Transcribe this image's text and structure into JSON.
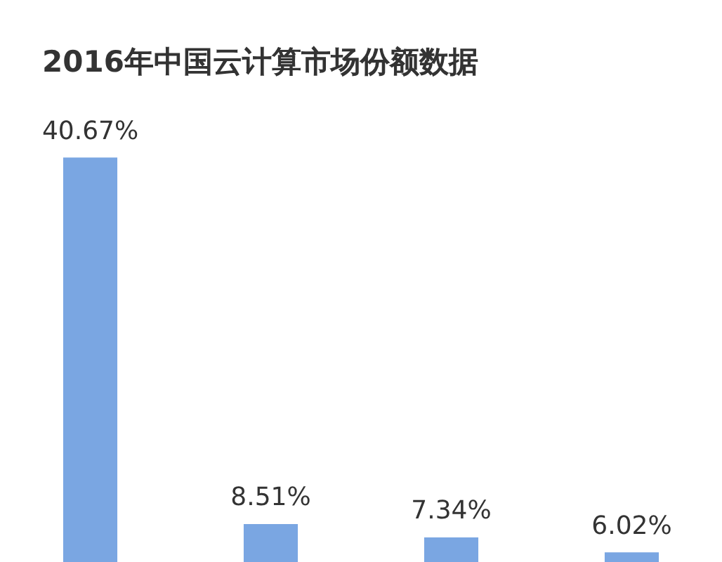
{
  "chart_data": {
    "type": "bar",
    "title": "2016年中国云计算市场份额数据",
    "categories": [
      null,
      null,
      null,
      null
    ],
    "values": [
      40.67,
      8.51,
      7.34,
      6.02
    ],
    "value_labels": [
      "40.67%",
      "8.51%",
      "7.34%",
      "6.02%"
    ],
    "color": "#7aa6e2"
  }
}
